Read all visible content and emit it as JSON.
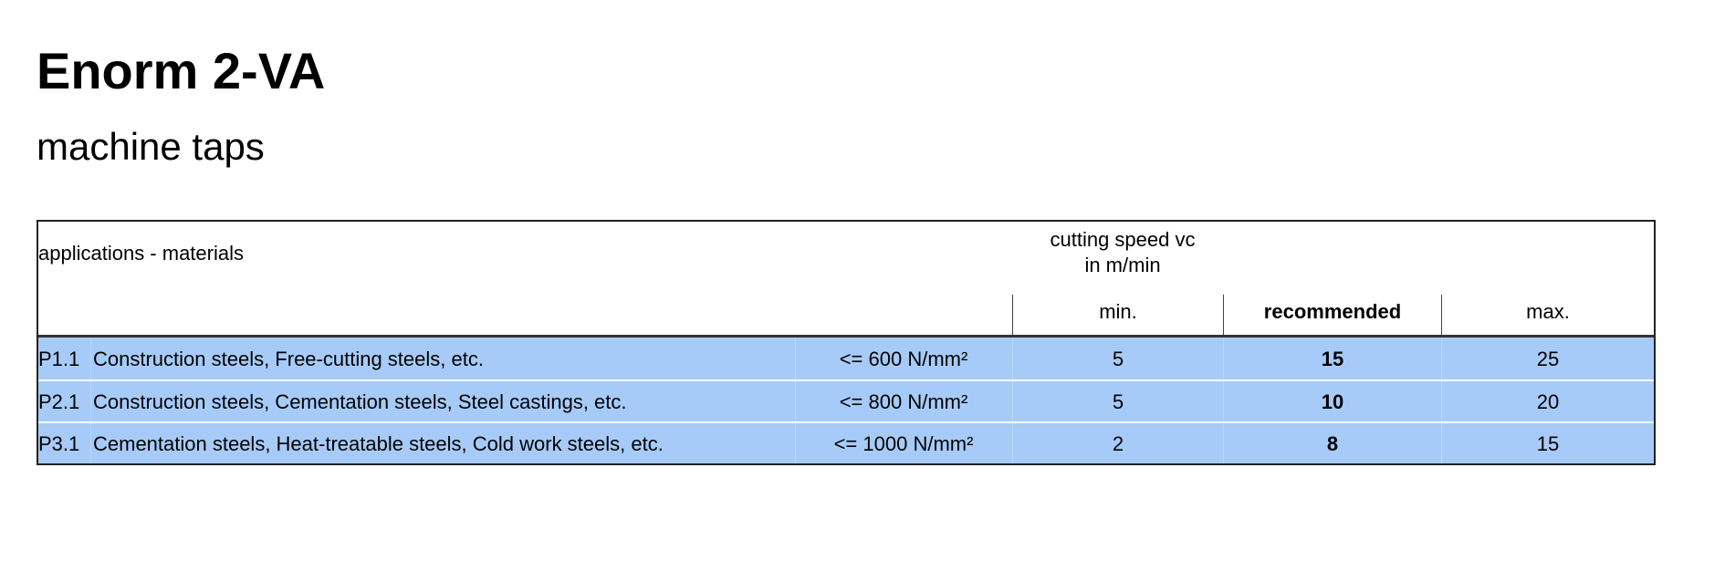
{
  "title": "Enorm 2-VA",
  "subtitle": "machine taps",
  "table": {
    "header": {
      "applications": "applications - materials",
      "speed_line1": "cutting speed vc",
      "speed_line2": "in m/min",
      "min": "min.",
      "recommended": "recommended",
      "max": "max."
    },
    "row_color": "#a7cbf8",
    "rows": [
      {
        "code": "P1.1",
        "material": "Construction steels, Free-cutting steels, etc.",
        "strength": "<= 600 N/mm²",
        "min": "5",
        "recommended": "15",
        "max": "25"
      },
      {
        "code": "P2.1",
        "material": "Construction steels, Cementation steels, Steel castings, etc.",
        "strength": "<= 800 N/mm²",
        "min": "5",
        "recommended": "10",
        "max": "20"
      },
      {
        "code": "P3.1",
        "material": "Cementation steels, Heat-treatable steels, Cold work steels, etc.",
        "strength": "<= 1000 N/mm²",
        "min": "2",
        "recommended": "8",
        "max": "15"
      }
    ]
  }
}
